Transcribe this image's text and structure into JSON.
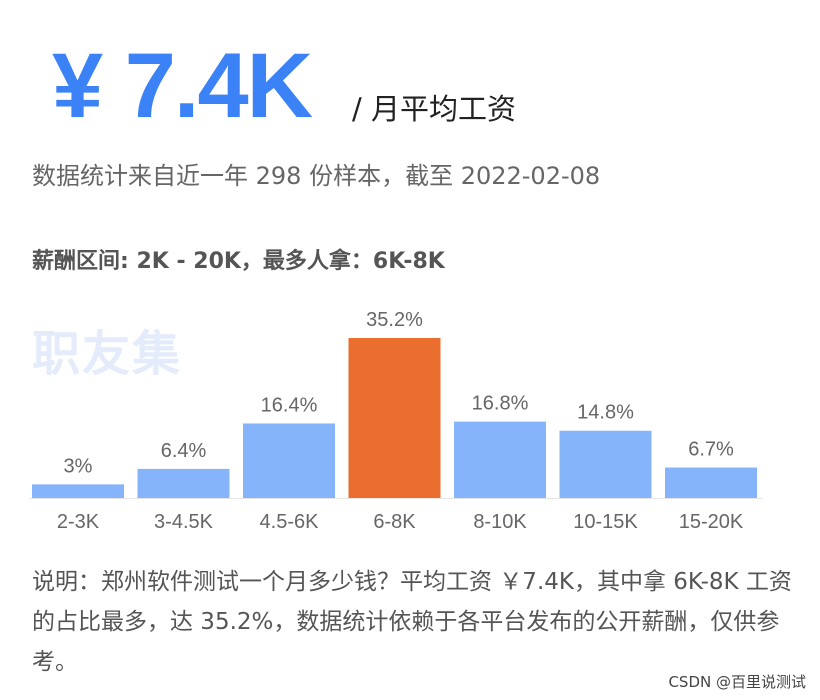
{
  "header": {
    "salary_value": "¥ 7.4K",
    "salary_unit": "/ 月平均工资",
    "subtitle": "数据统计来自近一年 298 份样本，截至 2022-02-08",
    "range_text": "薪酬区间: 2K - 20K，最多人拿：6K-8K",
    "watermark": "职友集"
  },
  "chart_data": {
    "type": "bar",
    "categories": [
      "2-3K",
      "3-4.5K",
      "4.5-6K",
      "6-8K",
      "8-10K",
      "10-15K",
      "15-20K"
    ],
    "values": [
      3,
      6.4,
      16.4,
      35.2,
      16.8,
      14.8,
      6.7
    ],
    "value_labels": [
      "3%",
      "6.4%",
      "16.4%",
      "35.2%",
      "16.8%",
      "14.8%",
      "6.7%"
    ],
    "highlight_index": 3,
    "colors": {
      "bar": "#85b4fa",
      "highlight": "#ea6e2e",
      "label": "#666666",
      "axis": "#e5e5e5"
    },
    "ylim": [
      0,
      35.2
    ],
    "grid": false
  },
  "note": "说明：郑州软件测试一个月多少钱？平均工资 ￥7.4K，其中拿 6K-8K 工资的占比最多，达 35.2%，数据统计依赖于各平台发布的公开薪酬，仅供参考。",
  "footer": "CSDN @百里说测试"
}
